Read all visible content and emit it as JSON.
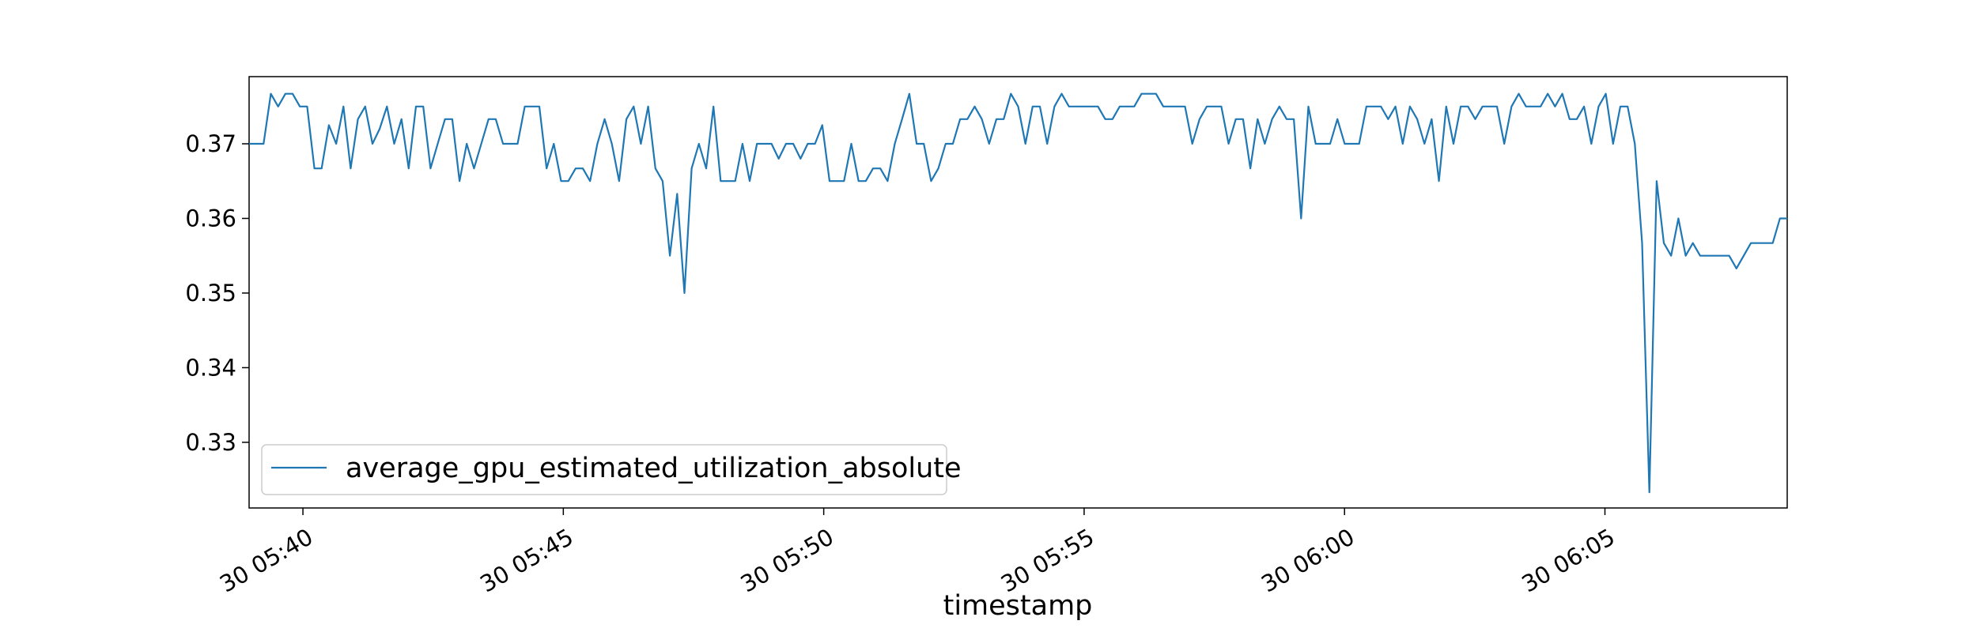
{
  "chart_data": {
    "type": "line",
    "title": "",
    "xlabel": "timestamp",
    "ylabel": "",
    "x_start": "30 05:38:58",
    "x_end": "30 06:08:30",
    "xlim": [
      "30 05:38:58",
      "30 06:08:30"
    ],
    "ylim": [
      0.3212,
      0.379
    ],
    "x_ticks": [
      "30 05:40",
      "30 05:45",
      "30 05:50",
      "30 05:55",
      "30 06:00",
      "30 06:05"
    ],
    "y_ticks": [
      "0.33",
      "0.34",
      "0.35",
      "0.36",
      "0.37"
    ],
    "legend": {
      "position": "lower-left"
    },
    "grid": false,
    "series": [
      {
        "name": "average_gpu_estimated_utilization_absolute",
        "color": "#1f77b4",
        "values": [
          0.37,
          0.37,
          0.37,
          0.3767,
          0.375,
          0.3767,
          0.3767,
          0.375,
          0.375,
          0.3667,
          0.3667,
          0.3725,
          0.37,
          0.375,
          0.3667,
          0.3733,
          0.375,
          0.37,
          0.372,
          0.375,
          0.37,
          0.3733,
          0.3667,
          0.375,
          0.375,
          0.3667,
          0.37,
          0.3733,
          0.3733,
          0.365,
          0.37,
          0.3667,
          0.37,
          0.3733,
          0.3733,
          0.37,
          0.37,
          0.37,
          0.375,
          0.375,
          0.375,
          0.3667,
          0.37,
          0.365,
          0.365,
          0.3667,
          0.3667,
          0.365,
          0.37,
          0.3733,
          0.37,
          0.365,
          0.3733,
          0.375,
          0.37,
          0.375,
          0.3667,
          0.365,
          0.355,
          0.3633,
          0.35,
          0.3667,
          0.37,
          0.3667,
          0.375,
          0.365,
          0.365,
          0.365,
          0.37,
          0.365,
          0.37,
          0.37,
          0.37,
          0.368,
          0.37,
          0.37,
          0.368,
          0.37,
          0.37,
          0.3725,
          0.365,
          0.365,
          0.365,
          0.37,
          0.365,
          0.365,
          0.3667,
          0.3667,
          0.365,
          0.37,
          0.3733,
          0.3767,
          0.37,
          0.37,
          0.365,
          0.3667,
          0.37,
          0.37,
          0.3733,
          0.3733,
          0.375,
          0.3733,
          0.37,
          0.3733,
          0.3733,
          0.3767,
          0.375,
          0.37,
          0.375,
          0.375,
          0.37,
          0.375,
          0.3767,
          0.375,
          0.375,
          0.375,
          0.375,
          0.375,
          0.3733,
          0.3733,
          0.375,
          0.375,
          0.375,
          0.3767,
          0.3767,
          0.3767,
          0.375,
          0.375,
          0.375,
          0.375,
          0.37,
          0.3733,
          0.375,
          0.375,
          0.375,
          0.37,
          0.3733,
          0.3733,
          0.3667,
          0.3733,
          0.37,
          0.3733,
          0.375,
          0.3733,
          0.3733,
          0.36,
          0.375,
          0.37,
          0.37,
          0.37,
          0.3733,
          0.37,
          0.37,
          0.37,
          0.375,
          0.375,
          0.375,
          0.3733,
          0.375,
          0.37,
          0.375,
          0.3733,
          0.37,
          0.3733,
          0.365,
          0.375,
          0.37,
          0.375,
          0.375,
          0.3733,
          0.375,
          0.375,
          0.375,
          0.37,
          0.375,
          0.3767,
          0.375,
          0.375,
          0.375,
          0.3767,
          0.375,
          0.3767,
          0.3733,
          0.3733,
          0.375,
          0.37,
          0.375,
          0.3767,
          0.37,
          0.375,
          0.375,
          0.37,
          0.3567,
          0.3233,
          0.365,
          0.3567,
          0.355,
          0.36,
          0.355,
          0.3567,
          0.355,
          0.355,
          0.355,
          0.355,
          0.355,
          0.3533,
          0.355,
          0.3567,
          0.3567,
          0.3567,
          0.3567,
          0.36,
          0.36
        ]
      }
    ]
  }
}
